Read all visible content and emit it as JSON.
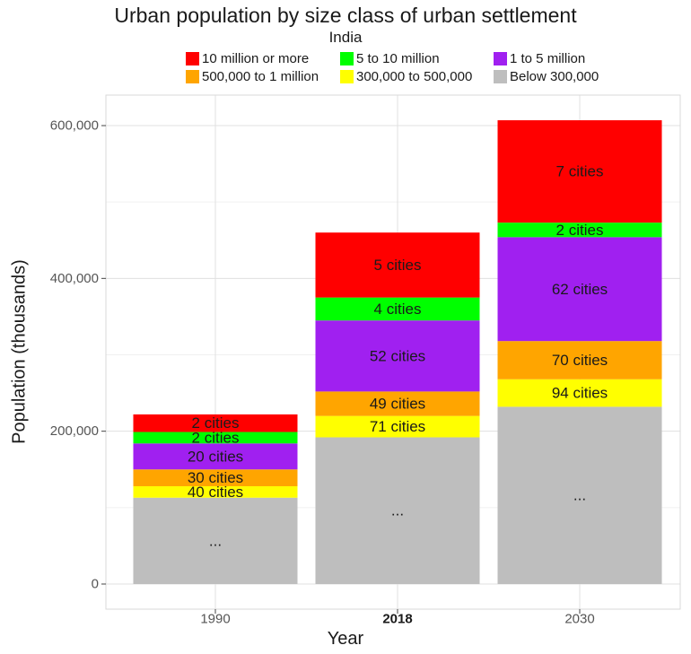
{
  "chart_data": {
    "type": "bar",
    "stacked": true,
    "title": "Urban population by size class of urban settlement",
    "subtitle": "India",
    "xlabel": "Year",
    "ylabel": "Population (thousands)",
    "categories": [
      "1990",
      "2018",
      "2030"
    ],
    "highlighted_category": "2018",
    "ylim": [
      0,
      640000
    ],
    "yticks": [
      0,
      200000,
      400000,
      600000
    ],
    "ytick_labels": [
      "0",
      "200,000",
      "400,000",
      "600,000"
    ],
    "grid": true,
    "legend_position": "top",
    "series": [
      {
        "name": "Below 300,000",
        "color": "#bebebe",
        "values": [
          113000,
          192000,
          232000
        ],
        "labels": [
          "...",
          "...",
          "..."
        ]
      },
      {
        "name": "300,000 to 500,000",
        "color": "#ffff00",
        "values": [
          15000,
          28000,
          36000
        ],
        "labels": [
          "40 cities",
          "71 cities",
          "94 cities"
        ]
      },
      {
        "name": "500,000 to 1 million",
        "color": "#ffa500",
        "values": [
          22000,
          32000,
          50000
        ],
        "labels": [
          "30 cities",
          "49 cities",
          "70 cities"
        ]
      },
      {
        "name": "1 to 5 million",
        "color": "#a020f0",
        "values": [
          34000,
          93000,
          136000
        ],
        "labels": [
          "20 cities",
          "52 cities",
          "62 cities"
        ]
      },
      {
        "name": "5 to 10 million",
        "color": "#00ff00",
        "values": [
          15000,
          30000,
          19000
        ],
        "labels": [
          "2 cities",
          "4 cities",
          "2 cities"
        ]
      },
      {
        "name": "10 million or more",
        "color": "#ff0000",
        "values": [
          23000,
          85000,
          134000
        ],
        "labels": [
          "2 cities",
          "5 cities",
          "7 cities"
        ]
      }
    ],
    "legend_order": [
      "10 million or more",
      "5 to 10 million",
      "1 to 5 million",
      "500,000 to 1 million",
      "300,000 to 500,000",
      "Below 300,000"
    ]
  }
}
